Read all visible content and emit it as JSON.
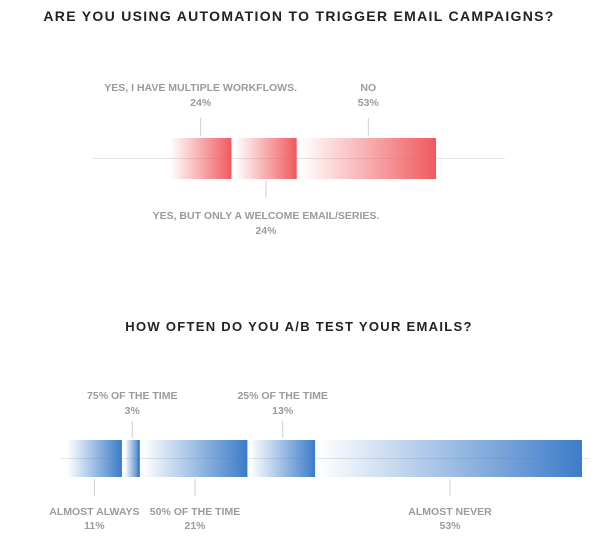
{
  "chart_data": [
    {
      "type": "bar",
      "orientation": "horizontal-stacked",
      "title": "ARE YOU USING AUTOMATION TO TRIGGER EMAIL CAMPAIGNS?",
      "color": "#f05a5f",
      "categories": [
        "YES, I HAVE MULTIPLE WORKFLOWS.",
        "YES, BUT ONLY A WELCOME EMAIL/SERIES.",
        "NO"
      ],
      "values": [
        24,
        24,
        53
      ],
      "value_labels": [
        "24%",
        "24%",
        "53%"
      ],
      "label_positions": [
        "top",
        "bottom",
        "top"
      ]
    },
    {
      "type": "bar",
      "orientation": "horizontal-stacked",
      "title": "HOW OFTEN DO YOU A/B TEST YOUR EMAILS?",
      "color": "#3d7cc9",
      "categories": [
        "ALMOST ALWAYS",
        "75% OF THE TIME",
        "50% OF THE TIME",
        "25% OF THE TIME",
        "ALMOST NEVER"
      ],
      "values": [
        11,
        3,
        21,
        13,
        53
      ],
      "value_labels": [
        "11%",
        "3%",
        "21%",
        "13%",
        "53%"
      ],
      "label_positions": [
        "bottom",
        "top",
        "bottom",
        "top",
        "bottom"
      ]
    }
  ]
}
